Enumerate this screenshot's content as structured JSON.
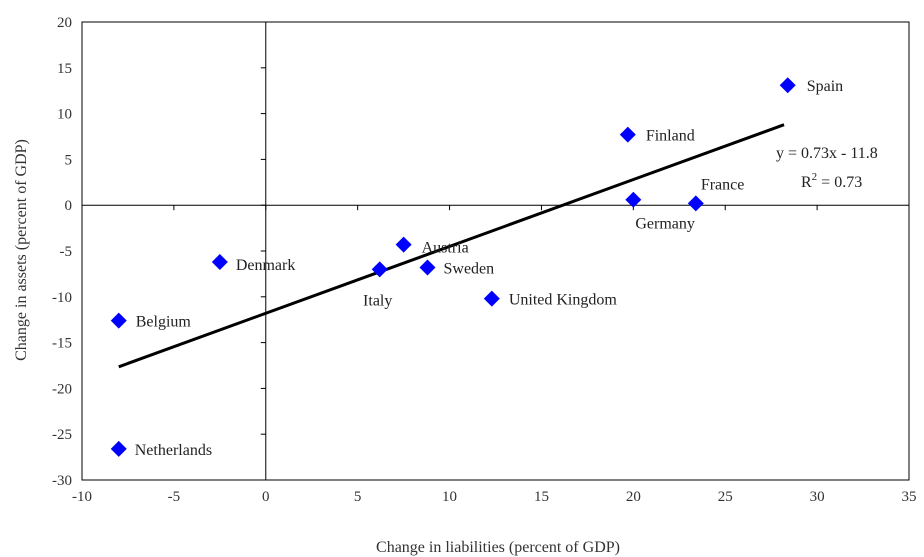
{
  "chart_data": {
    "type": "scatter",
    "xlabel": "Change in liabilities (percent of GDP)",
    "ylabel": "Change in assets (percent of GDP)",
    "xlim": [
      -10,
      35
    ],
    "ylim": [
      -30,
      20
    ],
    "xticks": [
      -10,
      -5,
      0,
      5,
      10,
      15,
      20,
      25,
      30,
      35
    ],
    "yticks": [
      -30,
      -25,
      -20,
      -15,
      -10,
      -5,
      0,
      5,
      10,
      15,
      20
    ],
    "grid": false,
    "marker_color": "#0000FF",
    "points": [
      {
        "label": "Spain",
        "x": 28.4,
        "y": 13.1
      },
      {
        "label": "Finland",
        "x": 19.7,
        "y": 7.7
      },
      {
        "label": "France",
        "x": 23.4,
        "y": 0.2
      },
      {
        "label": "Germany",
        "x": 20.0,
        "y": 0.6
      },
      {
        "label": "Austria",
        "x": 7.5,
        "y": -4.3
      },
      {
        "label": "Sweden",
        "x": 8.8,
        "y": -6.8
      },
      {
        "label": "Italy",
        "x": 6.2,
        "y": -7.0
      },
      {
        "label": "Denmark",
        "x": -2.5,
        "y": -6.2
      },
      {
        "label": "United Kingdom",
        "x": 12.3,
        "y": -10.2
      },
      {
        "label": "Belgium",
        "x": -8.0,
        "y": -12.6
      },
      {
        "label": "Netherlands",
        "x": -8.0,
        "y": -26.6
      }
    ],
    "trendline": {
      "slope": 0.73,
      "intercept": -11.8,
      "x_range": [
        -8,
        28.2
      ],
      "equation_text": "y = 0.73x - 11.8",
      "r2_prefix": "R",
      "r2_sup": "2",
      "r2_value": " = 0.73"
    }
  }
}
